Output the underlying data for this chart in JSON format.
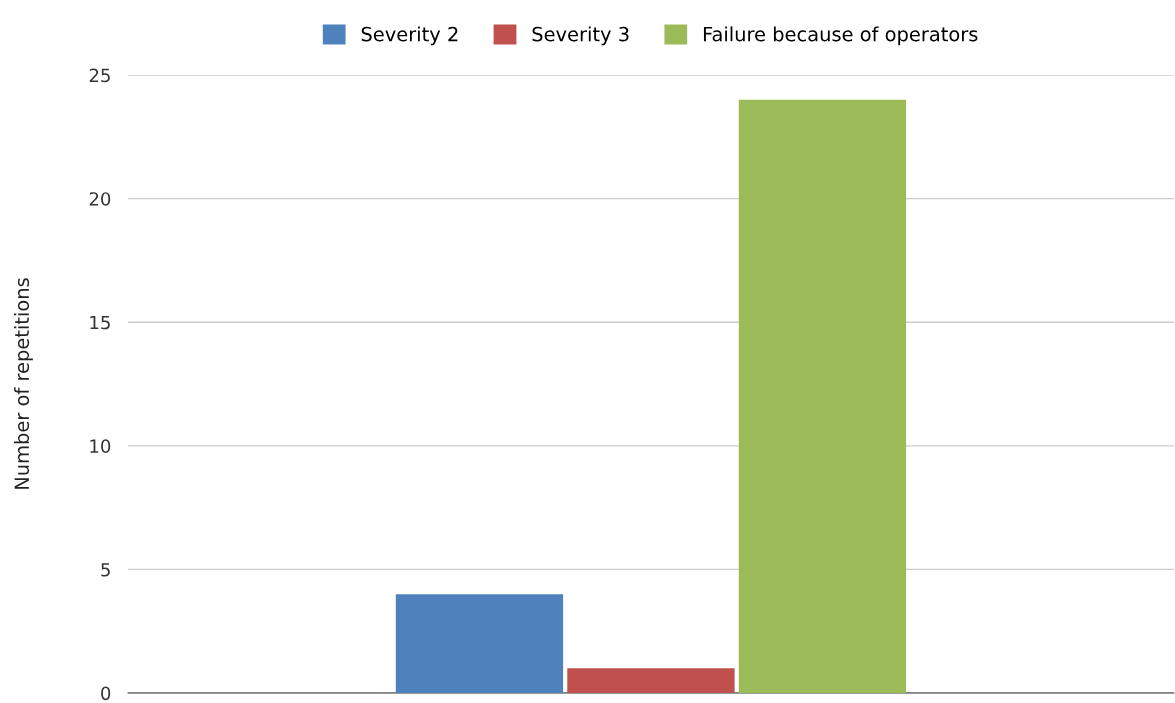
{
  "chart_data": {
    "type": "bar",
    "ylabel": "Number of repetitions",
    "categories": [
      null
    ],
    "series": [
      {
        "name": "Severity 2",
        "color": "#4f81bd",
        "values": [
          4
        ]
      },
      {
        "name": "Severity 3",
        "color": "#c0504d",
        "values": [
          1
        ]
      },
      {
        "name": "Failure because of operators",
        "color": "#9bbb59",
        "values": [
          24
        ]
      }
    ],
    "ylim": [
      0,
      25
    ],
    "yticks": [
      0,
      5,
      10,
      15,
      20,
      25
    ],
    "grid": "y",
    "legend": "top"
  }
}
